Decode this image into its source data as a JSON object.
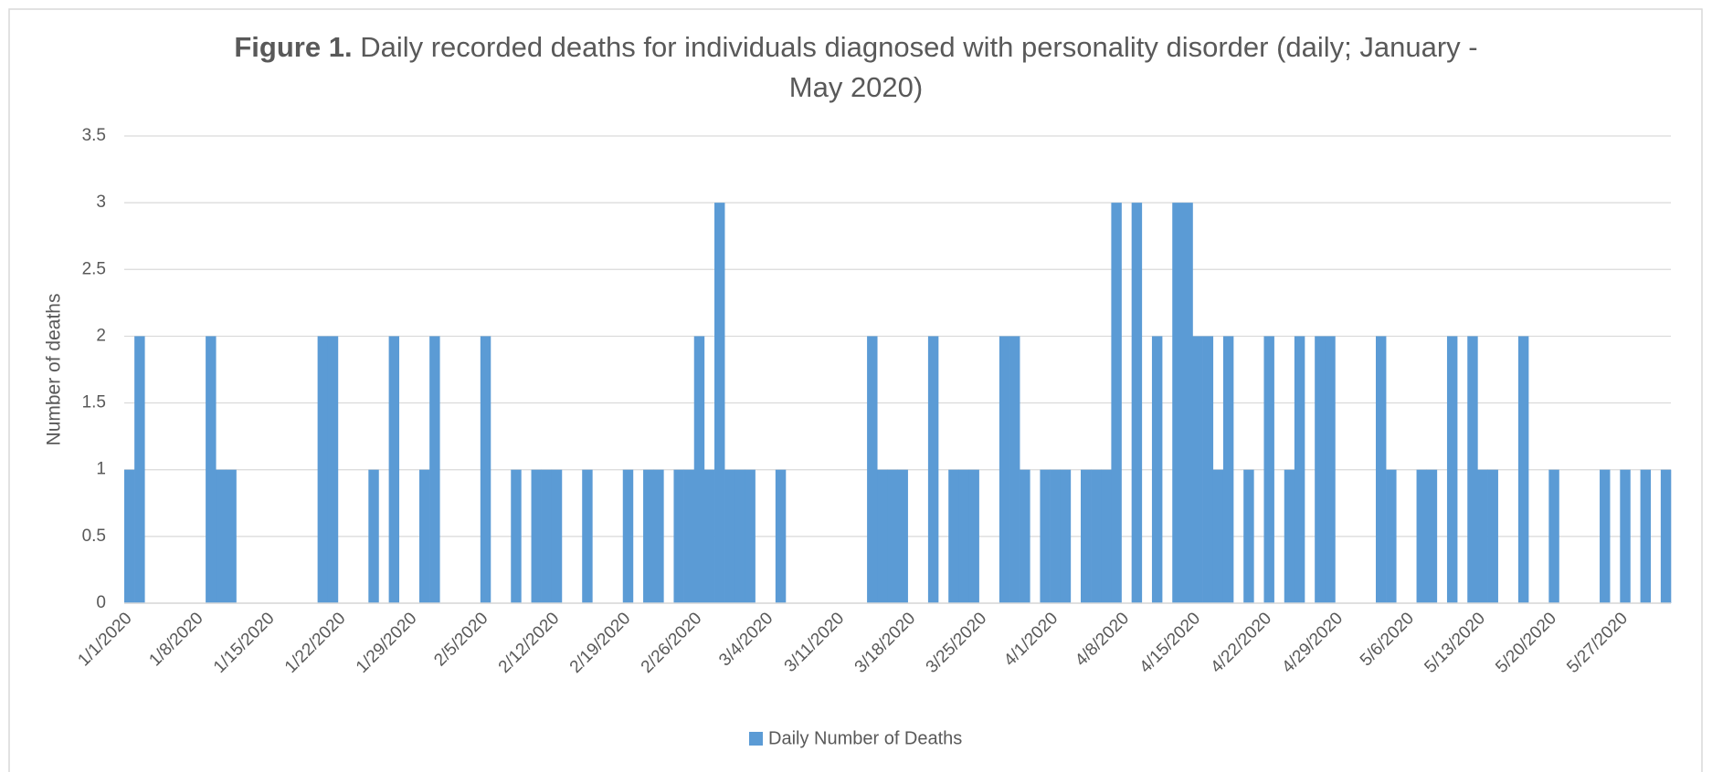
{
  "chart_data": {
    "type": "bar",
    "title_bold": "Figure 1.",
    "title": "Daily recorded deaths for individuals diagnosed with personality disorder (daily; January - May 2020)",
    "y_label": "Number of deaths",
    "categories": [
      "1/1/2020",
      null,
      null,
      null,
      null,
      null,
      null,
      "1/8/2020",
      null,
      null,
      null,
      null,
      null,
      null,
      "1/15/2020",
      null,
      null,
      null,
      null,
      null,
      null,
      "1/22/2020",
      null,
      null,
      null,
      null,
      null,
      null,
      "1/29/2020",
      null,
      null,
      null,
      null,
      null,
      null,
      "2/5/2020",
      null,
      null,
      null,
      null,
      null,
      null,
      "2/12/2020",
      null,
      null,
      null,
      null,
      null,
      null,
      "2/19/2020",
      null,
      null,
      null,
      null,
      null,
      null,
      "2/26/2020",
      null,
      null,
      null,
      null,
      null,
      null,
      "3/4/2020",
      null,
      null,
      null,
      null,
      null,
      null,
      "3/11/2020",
      null,
      null,
      null,
      null,
      null,
      null,
      "3/18/2020",
      null,
      null,
      null,
      null,
      null,
      null,
      "3/25/2020",
      null,
      null,
      null,
      null,
      null,
      null,
      "4/1/2020",
      null,
      null,
      null,
      null,
      null,
      null,
      "4/8/2020",
      null,
      null,
      null,
      null,
      null,
      null,
      "4/15/2020",
      null,
      null,
      null,
      null,
      null,
      null,
      "4/22/2020",
      null,
      null,
      null,
      null,
      null,
      null,
      "4/29/2020",
      null,
      null,
      null,
      null,
      null,
      null,
      "5/6/2020",
      null,
      null,
      null,
      null,
      null,
      null,
      "5/13/2020",
      null,
      null,
      null,
      null,
      null,
      null,
      "5/20/2020",
      null,
      null,
      null,
      null,
      null,
      null,
      "5/27/2020",
      null,
      null,
      null,
      null
    ],
    "series": [
      {
        "name": "Daily Number of Deaths",
        "color": "#5b9bd5",
        "values": [
          1,
          2,
          0,
          0,
          0,
          0,
          0,
          0,
          2,
          1,
          1,
          0,
          0,
          0,
          0,
          0,
          0,
          0,
          0,
          2,
          2,
          0,
          0,
          0,
          1,
          0,
          2,
          0,
          0,
          1,
          2,
          0,
          0,
          0,
          0,
          2,
          0,
          0,
          1,
          0,
          1,
          1,
          1,
          0,
          0,
          1,
          0,
          0,
          0,
          1,
          0,
          1,
          1,
          0,
          1,
          1,
          2,
          1,
          3,
          1,
          1,
          1,
          0,
          0,
          1,
          0,
          0,
          0,
          0,
          0,
          0,
          0,
          0,
          2,
          1,
          1,
          1,
          0,
          0,
          2,
          0,
          1,
          1,
          1,
          0,
          0,
          2,
          2,
          1,
          0,
          1,
          1,
          1,
          0,
          1,
          1,
          1,
          3,
          0,
          3,
          0,
          2,
          0,
          3,
          3,
          2,
          2,
          1,
          2,
          0,
          1,
          0,
          2,
          0,
          1,
          2,
          0,
          2,
          2,
          0,
          0,
          0,
          0,
          2,
          1,
          0,
          0,
          1,
          1,
          0,
          2,
          0,
          2,
          1,
          1,
          0,
          0,
          2,
          0,
          0,
          1,
          0,
          0,
          0,
          0,
          1,
          0,
          1,
          0,
          1,
          0,
          1
        ]
      }
    ],
    "ylim": [
      0,
      3.5
    ],
    "yticks": [
      0,
      0.5,
      1,
      1.5,
      2,
      2.5,
      3,
      3.5
    ],
    "grid": true,
    "legend": "bottom"
  }
}
